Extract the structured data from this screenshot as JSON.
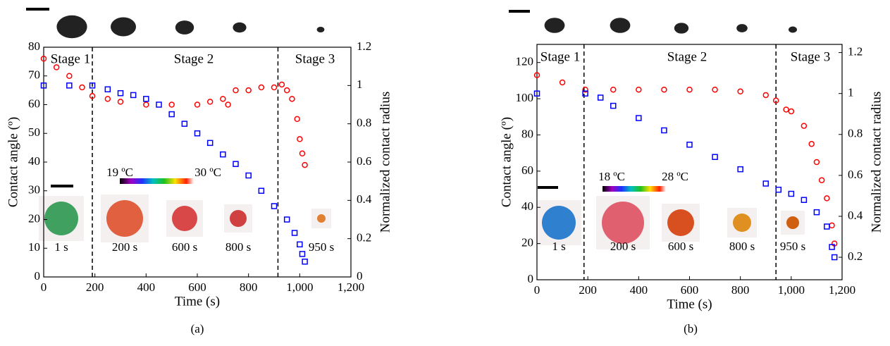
{
  "chart_data": [
    {
      "type": "scatter",
      "caption": "(a)",
      "xlabel": "Time (s)",
      "ylabel": "Contact angle (º)",
      "y2label": "Normalized contact radius",
      "xlim": [
        0,
        1200
      ],
      "xticks": [
        0,
        200,
        400,
        600,
        800,
        {
          "value": 1000,
          "label": "1,000"
        },
        {
          "value": 1200,
          "label": "1,200"
        }
      ],
      "ylim": [
        0,
        80
      ],
      "yticks": [
        0,
        10,
        20,
        30,
        40,
        50,
        60,
        70,
        80
      ],
      "y2lim": [
        0,
        1.2
      ],
      "y2ticks": [
        0,
        0.2,
        0.4,
        0.6,
        0.8,
        1,
        1.2
      ],
      "stage_boundaries": [
        190,
        915
      ],
      "stage_labels": [
        "Stage 1",
        "Stage 2",
        "Stage 3"
      ],
      "image_labels": [
        "1 s",
        "200 s",
        "600 s",
        "800 s",
        "950 s"
      ],
      "colorbar_labels": [
        "19 ºC",
        "30 ºC"
      ],
      "series": [
        {
          "color": "#ff0000",
          "marker": "circle",
          "x": [
            0,
            50,
            100,
            150,
            190,
            250,
            300,
            400,
            500,
            600,
            650,
            700,
            720,
            750,
            800,
            850,
            900,
            930,
            950,
            970,
            990,
            1000,
            1010,
            1020
          ],
          "values": [
            76,
            73,
            70,
            66,
            63,
            62,
            61,
            60,
            60,
            60,
            61,
            62,
            60,
            65,
            65,
            66,
            66,
            67,
            65,
            62,
            55,
            48,
            43,
            39
          ]
        },
        {
          "color": "#0000ff",
          "marker": "square",
          "axis": "y2",
          "x": [
            0,
            100,
            190,
            250,
            300,
            350,
            400,
            450,
            500,
            550,
            600,
            650,
            700,
            750,
            800,
            850,
            900,
            950,
            980,
            1000,
            1010,
            1020
          ],
          "values": [
            1,
            1,
            1,
            0.98,
            0.96,
            0.95,
            0.93,
            0.9,
            0.85,
            0.8,
            0.75,
            0.7,
            0.64,
            0.59,
            0.53,
            0.45,
            0.37,
            0.3,
            0.23,
            0.17,
            0.12,
            0.08
          ]
        }
      ]
    },
    {
      "type": "scatter",
      "caption": "(b)",
      "xlabel": "Time (s)",
      "ylabel": "Contact angle (º)",
      "y2label": "Normalized contact radius",
      "xlim": [
        0,
        1200
      ],
      "xticks": [
        0,
        200,
        400,
        600,
        800,
        {
          "value": 1000,
          "label": "1,000"
        },
        {
          "value": 1200,
          "label": "1,200"
        }
      ],
      "ylim": [
        0,
        130
      ],
      "yticks": [
        0,
        20,
        40,
        60,
        80,
        100,
        120
      ],
      "y2lim": [
        0.09,
        1.24
      ],
      "y2ticks": [
        0.2,
        0.4,
        0.6,
        0.8,
        1,
        1.2
      ],
      "stage_boundaries": [
        185,
        940
      ],
      "stage_labels": [
        "Stage 1",
        "Stage 2",
        "Stage 3"
      ],
      "image_labels": [
        "1 s",
        "200 s",
        "600 s",
        "800 s",
        "950 s"
      ],
      "colorbar_labels": [
        "18 ºC",
        "28 ºC"
      ],
      "series": [
        {
          "color": "#ff0000",
          "marker": "circle",
          "x": [
            0,
            100,
            190,
            300,
            400,
            500,
            600,
            700,
            800,
            900,
            940,
            980,
            1000,
            1050,
            1080,
            1100,
            1120,
            1140,
            1160,
            1170
          ],
          "values": [
            113,
            109,
            105,
            105,
            105,
            105,
            105,
            105,
            104,
            102,
            99,
            94,
            93,
            85,
            75,
            65,
            55,
            45,
            30,
            20
          ]
        },
        {
          "color": "#0000ff",
          "marker": "square",
          "axis": "y2",
          "x": [
            0,
            190,
            250,
            300,
            400,
            500,
            600,
            700,
            800,
            900,
            950,
            1000,
            1050,
            1100,
            1140,
            1160,
            1170
          ],
          "values": [
            1,
            1,
            0.98,
            0.94,
            0.88,
            0.82,
            0.75,
            0.69,
            0.63,
            0.56,
            0.53,
            0.51,
            0.48,
            0.42,
            0.35,
            0.25,
            0.2
          ]
        }
      ]
    }
  ]
}
